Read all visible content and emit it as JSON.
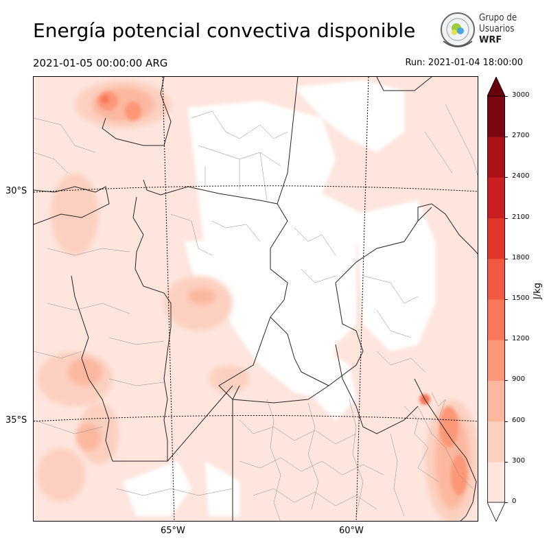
{
  "title": "Energía potencial convectiva disponible",
  "valid_time": "2021-01-05 00:00:00 ARG",
  "run_label": "Run: 2021-01-04 18:00:00",
  "logo": {
    "line1": "Grupo de",
    "line2": "Usuarios",
    "line3": "WRF"
  },
  "axes": {
    "lat_labels": [
      "30°S",
      "35°S"
    ],
    "lon_labels": [
      "65°W",
      "60°W"
    ]
  },
  "colorbar": {
    "unit": "J/kg",
    "levels": [
      0,
      300,
      600,
      900,
      1200,
      1500,
      1800,
      2100,
      2400,
      2700,
      3000
    ],
    "colors": [
      "#fee6df",
      "#fcd0c0",
      "#fcb79f",
      "#fc9878",
      "#f9785a",
      "#f25941",
      "#e2362b",
      "#c91e22",
      "#ab1116",
      "#7a0612"
    ],
    "extend_colors": {
      "over": "#67000d",
      "under": "#ffffff"
    }
  }
}
